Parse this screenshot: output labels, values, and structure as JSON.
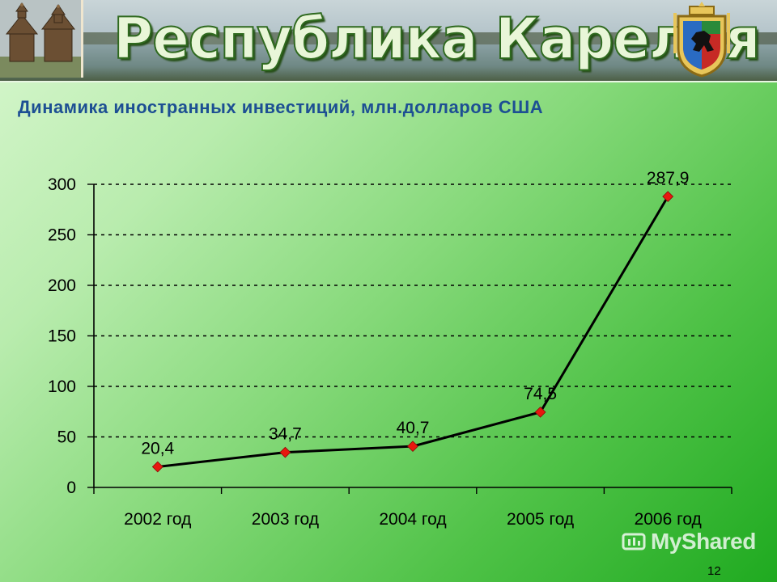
{
  "header": {
    "banner_title": "Республика Карелия",
    "subtitle": "Динамика иностранных инвестиций, млн.долларов США"
  },
  "chart_data": {
    "type": "line",
    "title": "",
    "xlabel": "",
    "ylabel": "",
    "categories": [
      "2002 год",
      "2003 год",
      "2004 год",
      "2005 год",
      "2006 год"
    ],
    "series": [
      {
        "values": [
          20.4,
          34.7,
          40.7,
          74.5,
          287.9
        ],
        "labels": [
          "20,4",
          "34,7",
          "40,7",
          "74,5",
          "287,9"
        ]
      }
    ],
    "ylim": [
      0,
      300
    ],
    "yticks": [
      0,
      50,
      100,
      150,
      200,
      250,
      300
    ],
    "grid": "horizontal-dashed",
    "legend": "none",
    "colors": {
      "line": "#000000",
      "marker": "#e8170f"
    }
  },
  "footer": {
    "watermark": "MyShared",
    "page_number": "12"
  },
  "colors": {
    "subtitle": "#1d4f93",
    "background_start": "#d8f7cf",
    "background_end": "#1faa20"
  },
  "icons": [
    "church-icon",
    "coat-of-arms-icon",
    "myshared-logo-icon"
  ]
}
